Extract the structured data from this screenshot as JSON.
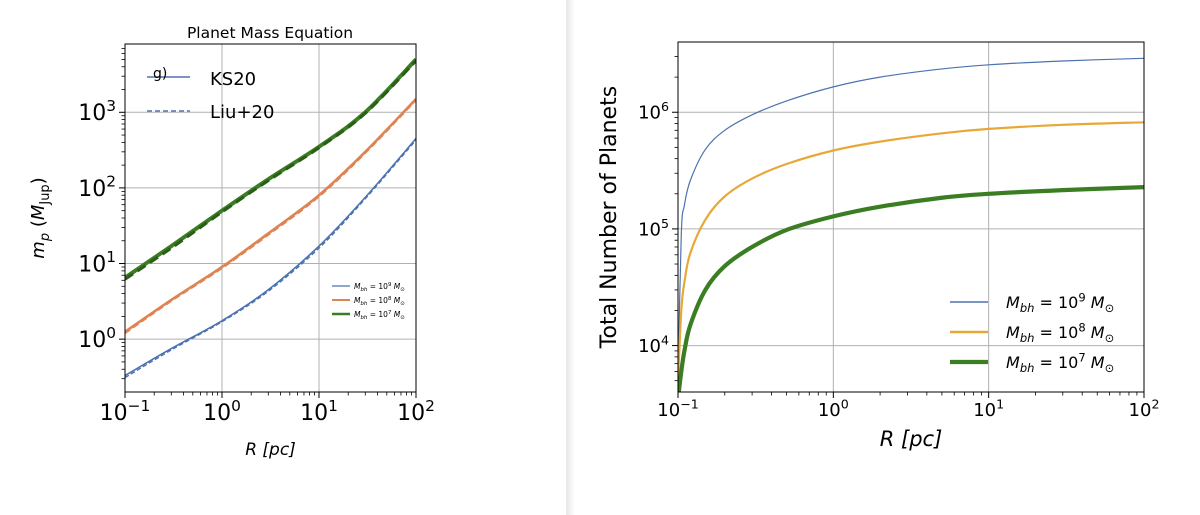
{
  "chart_data": [
    {
      "type": "line",
      "title": "Planet Mass Equation",
      "panel_label": "g)",
      "xlabel": "R [pc]",
      "ylabel": "m_p (M_Jup)",
      "xscale": "log",
      "yscale": "log",
      "xlim": [
        0.1,
        100
      ],
      "ylim": [
        0.2,
        8000
      ],
      "xticks": [
        0.1,
        1,
        10,
        100
      ],
      "xtick_labels": [
        {
          "base": "10",
          "exp": "−1"
        },
        {
          "base": "10",
          "exp": "0"
        },
        {
          "base": "10",
          "exp": "1"
        },
        {
          "base": "10",
          "exp": "2"
        }
      ],
      "yticks": [
        1,
        10,
        100,
        1000
      ],
      "ytick_labels": [
        {
          "base": "10",
          "exp": "0"
        },
        {
          "base": "10",
          "exp": "1"
        },
        {
          "base": "10",
          "exp": "2"
        },
        {
          "base": "10",
          "exp": "3"
        }
      ],
      "grid": true,
      "style_legend": {
        "placement": "top-left",
        "entries": [
          {
            "label": "KS20",
            "linestyle": "solid",
            "color": "#4c72b0"
          },
          {
            "label": "Liu+20",
            "linestyle": "dashed",
            "color": "#4c72b0"
          }
        ]
      },
      "legend": {
        "placement": "lower-right",
        "entries": [
          {
            "label_base": "M",
            "label_sub": "bh",
            "label_exp": "9",
            "color": "#4c72b0"
          },
          {
            "label_base": "M",
            "label_sub": "bh",
            "label_exp": "8",
            "color": "#dd8452"
          },
          {
            "label_base": "M",
            "label_sub": "bh",
            "label_exp": "7",
            "color": "#3a7d22"
          }
        ]
      },
      "x": [
        0.1,
        0.3,
        1,
        3,
        10,
        30,
        100
      ],
      "series": [
        {
          "name": "KS20 M_bh = 10^9 M_sun",
          "color": "#4c72b0",
          "linestyle": "solid",
          "width": 1.6,
          "values": [
            0.33,
            0.75,
            1.75,
            4.5,
            17,
            75,
            450
          ]
        },
        {
          "name": "Liu+20 M_bh = 10^9 M_sun",
          "color": "#4c72b0",
          "linestyle": "dashed",
          "width": 1.4,
          "values": [
            0.31,
            0.72,
            1.7,
            4.3,
            16,
            72,
            430
          ]
        },
        {
          "name": "KS20 M_bh = 10^8 M_sun",
          "color": "#dd8452",
          "linestyle": "solid",
          "width": 2.6,
          "values": [
            1.25,
            3.3,
            9,
            25,
            80,
            300,
            1500
          ]
        },
        {
          "name": "Liu+20 M_bh = 10^8 M_sun",
          "color": "#dd8452",
          "linestyle": "dashed",
          "width": 2,
          "values": [
            1.2,
            3.2,
            8.7,
            24,
            77,
            290,
            1450
          ]
        },
        {
          "name": "KS20 M_bh = 10^7 M_sun",
          "color": "#3a7d22",
          "linestyle": "solid",
          "width": 4,
          "values": [
            6.5,
            17,
            50,
            130,
            350,
            1000,
            5000
          ]
        },
        {
          "name": "Liu+20 M_bh = 10^7 M_sun",
          "color": "#2a5e18",
          "linestyle": "dashed",
          "width": 3,
          "values": [
            6.2,
            16,
            48,
            125,
            340,
            970,
            4800
          ]
        }
      ]
    },
    {
      "type": "line",
      "xlabel": "R [pc]",
      "ylabel": "Total Number of Planets",
      "xscale": "log",
      "yscale": "log",
      "xlim": [
        0.1,
        100
      ],
      "ylim": [
        4000,
        4000000
      ],
      "xticks": [
        0.1,
        1,
        10,
        100
      ],
      "xtick_labels": [
        {
          "base": "10",
          "exp": "−1"
        },
        {
          "base": "10",
          "exp": "0"
        },
        {
          "base": "10",
          "exp": "1"
        },
        {
          "base": "10",
          "exp": "2"
        }
      ],
      "yticks": [
        10000,
        100000,
        1000000
      ],
      "ytick_labels": [
        {
          "base": "10",
          "exp": "4"
        },
        {
          "base": "10",
          "exp": "5"
        },
        {
          "base": "10",
          "exp": "6"
        }
      ],
      "grid": true,
      "legend": {
        "placement": "lower-right",
        "entries": [
          {
            "label_base": "M",
            "label_sub": "bh",
            "label_exp": "9",
            "color": "#4c72b0"
          },
          {
            "label_base": "M",
            "label_sub": "bh",
            "label_exp": "8",
            "color": "#e8a838"
          },
          {
            "label_base": "M",
            "label_sub": "bh",
            "label_exp": "7",
            "color": "#3a7d22"
          }
        ]
      },
      "x": [
        0.1,
        0.105,
        0.11,
        0.12,
        0.15,
        0.2,
        0.3,
        0.5,
        1,
        2,
        5,
        10,
        30,
        100
      ],
      "series": [
        {
          "name": "M_bh = 10^9 M_sun",
          "color": "#4c72b0",
          "width": 1.2,
          "values": [
            5000,
            90000,
            160000,
            260000,
            480000,
            700000,
            950000,
            1250000,
            1650000,
            2000000,
            2350000,
            2550000,
            2750000,
            2900000
          ]
        },
        {
          "name": "M_bh = 10^8 M_sun",
          "color": "#e8a838",
          "width": 2.2,
          "values": [
            5000,
            20000,
            35000,
            62000,
            120000,
            190000,
            270000,
            360000,
            470000,
            560000,
            660000,
            720000,
            780000,
            820000
          ]
        },
        {
          "name": "M_bh = 10^7 M_sun",
          "color": "#3a7d22",
          "width": 4.2,
          "values": [
            3500,
            6000,
            9000,
            15000,
            30000,
            48000,
            70000,
            98000,
            128000,
            155000,
            185000,
            200000,
            215000,
            228000
          ]
        }
      ]
    }
  ]
}
